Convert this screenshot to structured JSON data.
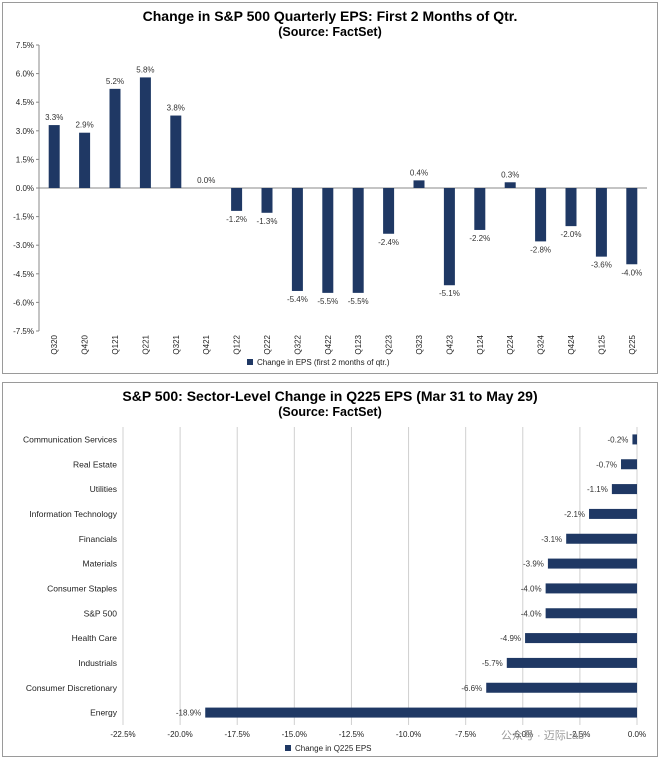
{
  "chart_data": [
    {
      "type": "bar",
      "title": "Change in S&P 500 Quarterly  EPS: First 2 Months of Qtr.",
      "subtitle": "(Source: FactSet)",
      "categories": [
        "Q320",
        "Q420",
        "Q121",
        "Q221",
        "Q321",
        "Q421",
        "Q122",
        "Q222",
        "Q322",
        "Q422",
        "Q123",
        "Q223",
        "Q323",
        "Q423",
        "Q124",
        "Q224",
        "Q324",
        "Q424",
        "Q125",
        "Q225"
      ],
      "series": [
        {
          "name": "Change in EPS (first 2 months of qtr.)",
          "values": [
            3.3,
            2.9,
            5.2,
            5.8,
            3.8,
            0.0,
            -1.2,
            -1.3,
            -5.4,
            -5.5,
            -5.5,
            -2.4,
            0.4,
            -5.1,
            -2.2,
            0.3,
            -2.8,
            -2.0,
            -3.6,
            -4.0
          ],
          "labels": [
            "3.3%",
            "2.9%",
            "5.2%",
            "5.8%",
            "3.8%",
            "0.0%",
            "-1.2%",
            "-1.3%",
            "-5.4%",
            "-5.5%",
            "-5.5%",
            "-2.4%",
            "0.4%",
            "-5.1%",
            "-2.2%",
            "0.3%",
            "-2.8%",
            "-2.0%",
            "-3.6%",
            "-4.0%"
          ]
        }
      ],
      "ylim": [
        -7.5,
        7.5
      ],
      "yticks": [
        7.5,
        6.0,
        4.5,
        3.0,
        1.5,
        0.0,
        -1.5,
        -3.0,
        -4.5,
        -6.0,
        -7.5
      ],
      "ytick_labels": [
        "7.5%",
        "6.0%",
        "4.5%",
        "3.0%",
        "1.5%",
        "0.0%",
        "-1.5%",
        "-3.0%",
        "-4.5%",
        "-6.0%",
        "-7.5%"
      ],
      "legend_position": "bottom",
      "grid": false,
      "bar_color": "#1f3864"
    },
    {
      "type": "bar",
      "orientation": "horizontal",
      "title": "S&P 500: Sector-Level Change in Q225 EPS (Mar 31 to May 29)",
      "subtitle": "(Source: FactSet)",
      "categories": [
        "Communication Services",
        "Real Estate",
        "Utilities",
        "Information Technology",
        "Financials",
        "Materials",
        "Consumer Staples",
        "S&P 500",
        "Health Care",
        "Industrials",
        "Consumer Discretionary",
        "Energy"
      ],
      "series": [
        {
          "name": "Change in Q225 EPS",
          "values": [
            -0.2,
            -0.7,
            -1.1,
            -2.1,
            -3.1,
            -3.9,
            -4.0,
            -4.0,
            -4.9,
            -5.7,
            -6.6,
            -18.9
          ],
          "labels": [
            "-0.2%",
            "-0.7%",
            "-1.1%",
            "-2.1%",
            "-3.1%",
            "-3.9%",
            "-4.0%",
            "-4.0%",
            "-4.9%",
            "-5.7%",
            "-6.6%",
            "-18.9%"
          ]
        }
      ],
      "xlim": [
        -22.5,
        0.0
      ],
      "xticks": [
        -22.5,
        -20.0,
        -17.5,
        -15.0,
        -12.5,
        -10.0,
        -7.5,
        -5.0,
        -2.5,
        0.0
      ],
      "xtick_labels": [
        "-22.5%",
        "-20.0%",
        "-17.5%",
        "-15.0%",
        "-12.5%",
        "-10.0%",
        "-7.5%",
        "-5.0%",
        "-2.5%",
        "0.0%"
      ],
      "legend_position": "bottom",
      "grid": true,
      "bar_color": "#1f3864"
    }
  ],
  "watermark": "公众号 · 迈际Lab"
}
